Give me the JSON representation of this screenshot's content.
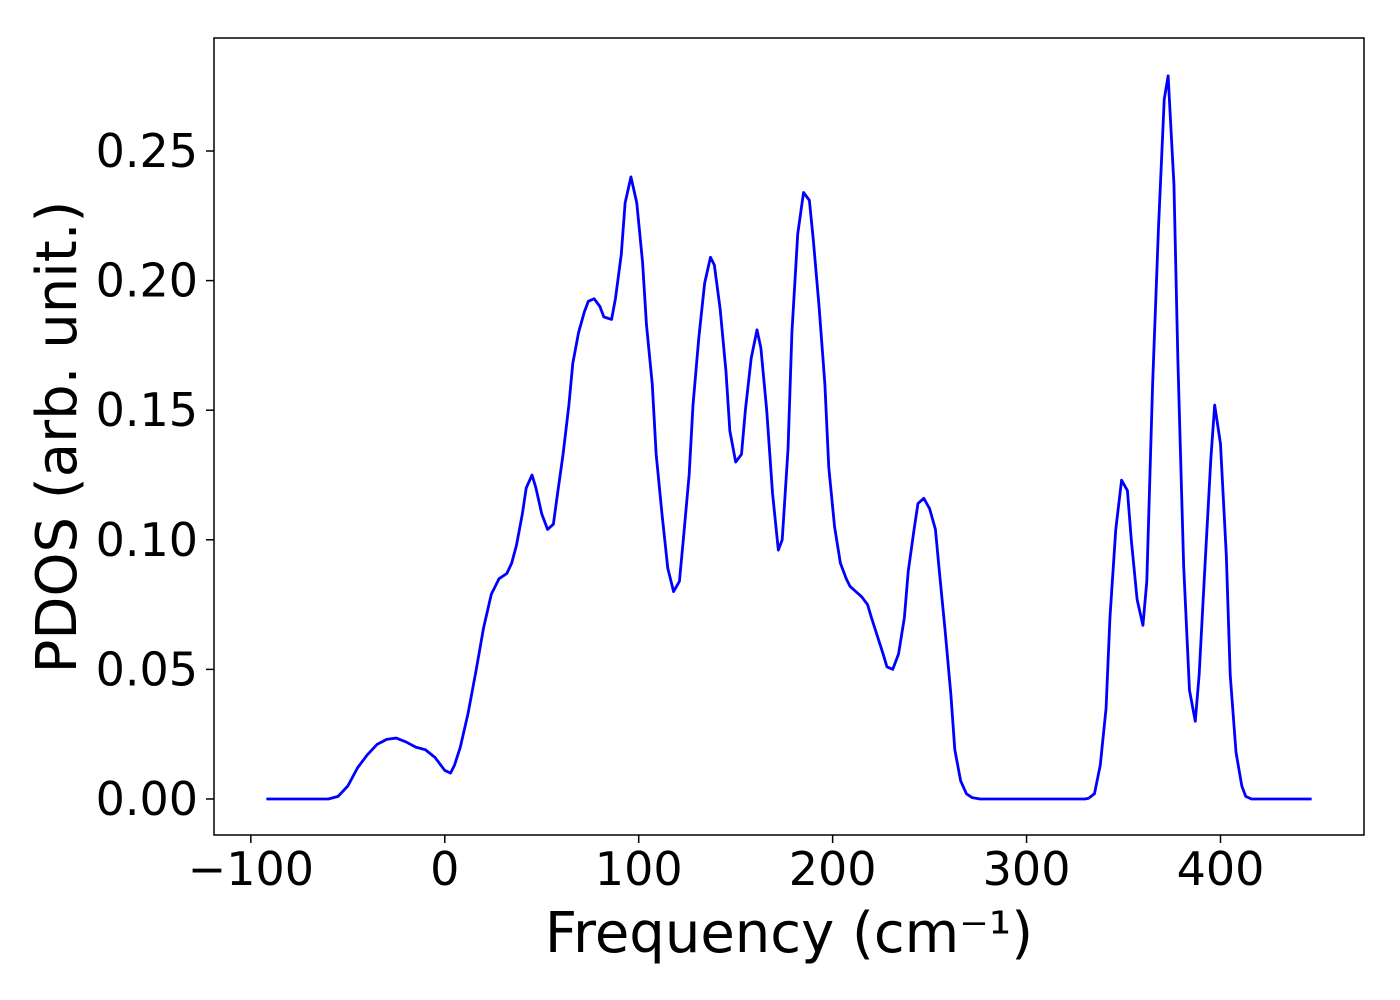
{
  "chart_data": {
    "type": "line",
    "xlabel": "Frequency (cm⁻¹)",
    "ylabel": "PDOS (arb. unit.)",
    "xlim": [
      -119,
      474
    ],
    "ylim": [
      -0.0139,
      0.2936
    ],
    "xticks": [
      {
        "value": -100,
        "label": "−100"
      },
      0,
      100,
      200,
      300,
      400
    ],
    "yticks": [
      {
        "value": 0,
        "label": "0.00"
      },
      {
        "value": 0.05,
        "label": "0.05"
      },
      {
        "value": 0.1,
        "label": "0.10"
      },
      {
        "value": 0.15,
        "label": "0.15"
      },
      {
        "value": 0.2,
        "label": "0.20"
      },
      {
        "value": 0.25,
        "label": "0.25"
      }
    ],
    "grid": false,
    "x": [
      -92,
      -60,
      -55,
      -50,
      -45,
      -40,
      -35,
      -30,
      -25,
      -20,
      -15,
      -10,
      -5,
      0,
      3,
      5,
      8,
      12,
      16,
      20,
      24,
      28,
      32,
      34.5,
      37,
      40,
      42,
      45,
      47,
      50,
      53,
      56,
      58,
      61,
      64,
      66,
      69,
      72,
      74,
      77,
      80,
      82,
      86,
      88,
      91,
      93,
      96,
      99,
      102,
      104,
      107,
      109,
      112,
      115,
      118,
      121,
      123,
      126,
      128,
      131,
      134,
      137,
      139,
      142,
      145,
      147,
      150,
      153,
      155,
      158,
      161,
      163,
      166,
      169,
      172,
      174,
      177,
      179,
      182,
      185,
      188,
      190,
      193,
      196,
      198,
      201,
      204,
      207,
      209,
      212,
      215,
      218,
      220,
      223,
      226,
      228,
      231,
      234,
      237,
      239,
      242,
      244,
      247,
      250,
      253,
      255,
      258,
      261,
      263,
      266,
      269,
      272,
      276,
      330,
      332,
      335,
      338,
      341,
      343,
      346,
      349,
      352,
      354,
      357,
      360,
      362,
      365,
      368,
      371,
      373,
      376,
      378,
      381,
      384,
      387,
      389,
      392,
      395,
      397,
      400,
      403,
      405,
      408,
      411,
      413,
      416,
      447
    ],
    "series": [
      {
        "color": "#0000ff",
        "values": [
          0,
          0,
          0.001,
          0.005,
          0.012,
          0.017,
          0.021,
          0.023,
          0.0235,
          0.022,
          0.02,
          0.019,
          0.016,
          0.011,
          0.01,
          0.013,
          0.02,
          0.033,
          0.049,
          0.066,
          0.079,
          0.085,
          0.087,
          0.091,
          0.098,
          0.11,
          0.12,
          0.125,
          0.12,
          0.11,
          0.104,
          0.106,
          0.117,
          0.133,
          0.152,
          0.168,
          0.18,
          0.188,
          0.192,
          0.193,
          0.19,
          0.186,
          0.185,
          0.193,
          0.21,
          0.23,
          0.24,
          0.23,
          0.207,
          0.183,
          0.16,
          0.133,
          0.11,
          0.089,
          0.08,
          0.084,
          0.1,
          0.125,
          0.152,
          0.178,
          0.199,
          0.209,
          0.206,
          0.189,
          0.165,
          0.142,
          0.13,
          0.133,
          0.15,
          0.17,
          0.181,
          0.174,
          0.15,
          0.118,
          0.096,
          0.1,
          0.135,
          0.18,
          0.218,
          0.234,
          0.231,
          0.216,
          0.19,
          0.16,
          0.128,
          0.105,
          0.091,
          0.085,
          0.082,
          0.08,
          0.078,
          0.075,
          0.07,
          0.063,
          0.056,
          0.051,
          0.05,
          0.056,
          0.07,
          0.088,
          0.104,
          0.114,
          0.116,
          0.112,
          0.104,
          0.088,
          0.065,
          0.04,
          0.019,
          0.007,
          0.002,
          0.0005,
          0,
          0,
          0.0003,
          0.002,
          0.013,
          0.035,
          0.07,
          0.104,
          0.123,
          0.119,
          0.1,
          0.077,
          0.067,
          0.084,
          0.16,
          0.22,
          0.27,
          0.279,
          0.237,
          0.17,
          0.09,
          0.042,
          0.03,
          0.048,
          0.09,
          0.131,
          0.152,
          0.137,
          0.094,
          0.048,
          0.018,
          0.005,
          0.001,
          0,
          0
        ]
      }
    ]
  }
}
